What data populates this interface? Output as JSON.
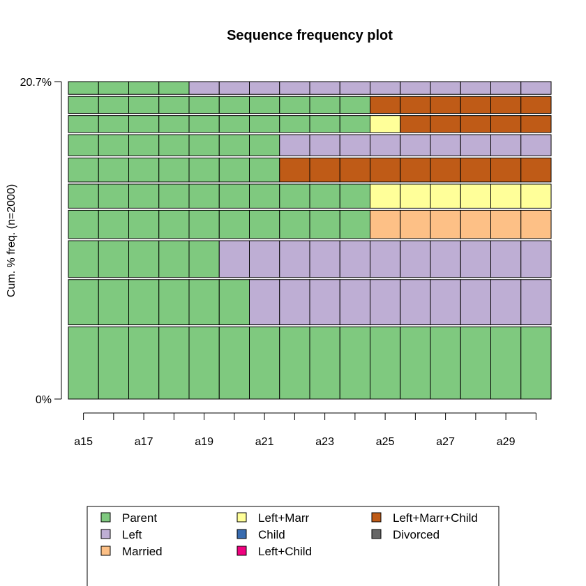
{
  "chart_data": {
    "type": "bar",
    "title": "Sequence frequency plot",
    "ylabel": "Cum. % freq. (n=2000)",
    "y_ticks": [
      "0%",
      "20.7%"
    ],
    "ylim": [
      0,
      20.7
    ],
    "x_columns": [
      "a15",
      "a16",
      "a17",
      "a18",
      "a19",
      "a20",
      "a21",
      "a22",
      "a23",
      "a24",
      "a25",
      "a26",
      "a27",
      "a28",
      "a29",
      "a30"
    ],
    "x_tick_labels": [
      "a15",
      "a17",
      "a19",
      "a21",
      "a23",
      "a25",
      "a27",
      "a29"
    ],
    "states": [
      {
        "name": "Parent",
        "color": "#7fc97f"
      },
      {
        "name": "Left",
        "color": "#beaed4"
      },
      {
        "name": "Married",
        "color": "#fdc086"
      },
      {
        "name": "Left+Marr",
        "color": "#ffff99"
      },
      {
        "name": "Child",
        "color": "#386cb0"
      },
      {
        "name": "Left+Child",
        "color": "#f0027f"
      },
      {
        "name": "Left+Marr+Child",
        "color": "#bf5b17"
      },
      {
        "name": "Divorced",
        "color": "#666666"
      }
    ],
    "legend_order": [
      "Parent",
      "Left",
      "Married",
      "Left+Marr",
      "Child",
      "Left+Child",
      "Left+Marr+Child",
      "Divorced"
    ],
    "legend_columns": 3,
    "legend_position": "bottom",
    "sequences": [
      {
        "freq_pct": 5.1,
        "spells": [
          {
            "state": "Parent",
            "length": 16
          }
        ]
      },
      {
        "freq_pct": 3.2,
        "spells": [
          {
            "state": "Parent",
            "length": 6
          },
          {
            "state": "Left",
            "length": 10
          }
        ]
      },
      {
        "freq_pct": 2.6,
        "spells": [
          {
            "state": "Parent",
            "length": 5
          },
          {
            "state": "Left",
            "length": 11
          }
        ]
      },
      {
        "freq_pct": 2.0,
        "spells": [
          {
            "state": "Parent",
            "length": 10
          },
          {
            "state": "Married",
            "length": 6
          }
        ]
      },
      {
        "freq_pct": 1.7,
        "spells": [
          {
            "state": "Parent",
            "length": 10
          },
          {
            "state": "Left+Marr",
            "length": 6
          }
        ]
      },
      {
        "freq_pct": 1.7,
        "spells": [
          {
            "state": "Parent",
            "length": 7
          },
          {
            "state": "Left+Marr+Child",
            "length": 9
          }
        ]
      },
      {
        "freq_pct": 1.5,
        "spells": [
          {
            "state": "Parent",
            "length": 7
          },
          {
            "state": "Left",
            "length": 9
          }
        ]
      },
      {
        "freq_pct": 1.2,
        "spells": [
          {
            "state": "Parent",
            "length": 10
          },
          {
            "state": "Left+Marr",
            "length": 1
          },
          {
            "state": "Left+Marr+Child",
            "length": 5
          }
        ]
      },
      {
        "freq_pct": 1.2,
        "spells": [
          {
            "state": "Parent",
            "length": 10
          },
          {
            "state": "Left+Marr+Child",
            "length": 6
          }
        ]
      },
      {
        "freq_pct": 0.9,
        "spells": [
          {
            "state": "Parent",
            "length": 4
          },
          {
            "state": "Left",
            "length": 12
          }
        ]
      }
    ]
  }
}
